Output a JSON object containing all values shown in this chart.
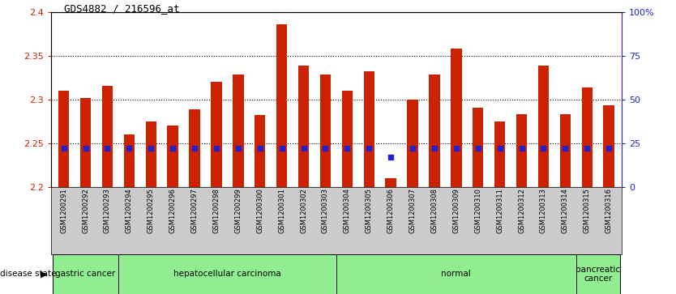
{
  "title": "GDS4882 / 216596_at",
  "samples": [
    "GSM1200291",
    "GSM1200292",
    "GSM1200293",
    "GSM1200294",
    "GSM1200295",
    "GSM1200296",
    "GSM1200297",
    "GSM1200298",
    "GSM1200299",
    "GSM1200300",
    "GSM1200301",
    "GSM1200302",
    "GSM1200303",
    "GSM1200304",
    "GSM1200305",
    "GSM1200306",
    "GSM1200307",
    "GSM1200308",
    "GSM1200309",
    "GSM1200310",
    "GSM1200311",
    "GSM1200312",
    "GSM1200313",
    "GSM1200314",
    "GSM1200315",
    "GSM1200316"
  ],
  "transformed_count": [
    2.31,
    2.301,
    2.315,
    2.26,
    2.275,
    2.27,
    2.288,
    2.32,
    2.328,
    2.282,
    2.386,
    2.338,
    2.328,
    2.31,
    2.332,
    2.21,
    2.3,
    2.328,
    2.358,
    2.29,
    2.275,
    2.283,
    2.338,
    2.283,
    2.313,
    2.293
  ],
  "percentile_rank": [
    22,
    22,
    22,
    22,
    22,
    22,
    22,
    22,
    22,
    22,
    22,
    22,
    22,
    22,
    22,
    17,
    22,
    22,
    22,
    22,
    22,
    22,
    22,
    22,
    22,
    22
  ],
  "disease_groups": [
    {
      "label": "gastric cancer",
      "start": 0,
      "end": 2
    },
    {
      "label": "hepatocellular carcinoma",
      "start": 3,
      "end": 12
    },
    {
      "label": "normal",
      "start": 13,
      "end": 23
    },
    {
      "label": "pancreatic\ncancer",
      "start": 24,
      "end": 25
    }
  ],
  "ylim": [
    2.2,
    2.4
  ],
  "yticks": [
    2.2,
    2.25,
    2.3,
    2.35,
    2.4
  ],
  "ytick_labels": [
    "2.2",
    "2.25",
    "2.3",
    "2.35",
    "2.4"
  ],
  "right_yticks": [
    0,
    25,
    50,
    75,
    100
  ],
  "right_ytick_labels": [
    "0",
    "25",
    "50",
    "75",
    "100%"
  ],
  "bar_color": "#cc2200",
  "dot_color": "#2222cc",
  "disease_bg_color": "#90ee90",
  "label_bg_color": "#cccccc",
  "left_axis_color": "#cc2200",
  "right_axis_color": "#2222cc",
  "bar_width": 0.5
}
